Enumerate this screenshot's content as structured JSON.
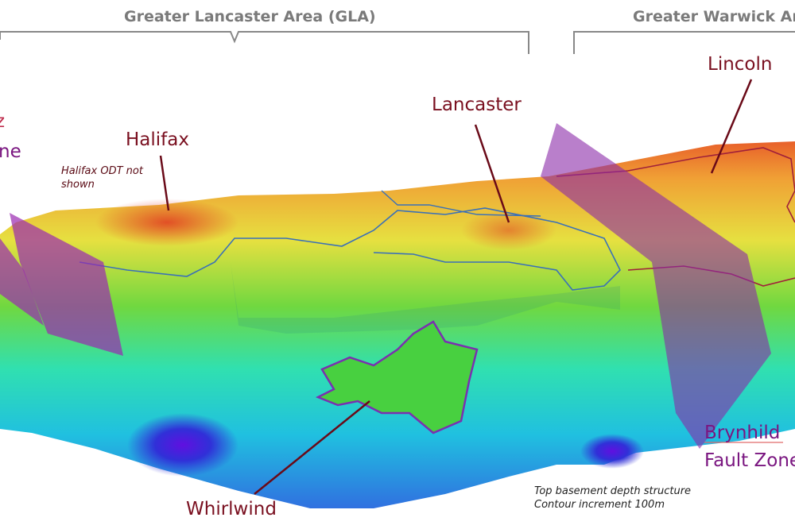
{
  "headers": {
    "gla": "Greater Lancaster Area (GLA)",
    "gwa": "Greater Warwick Area"
  },
  "labels": {
    "halifax": "Halifax",
    "halifax_note_line1": "Halifax ODT not",
    "halifax_note_line2": "shown",
    "lancaster": "Lancaster",
    "lincoln": "Lincoln",
    "whirlwind": "Whirlwind",
    "brynhild_line1": "Brynhild",
    "brynhild_line2": "Fault Zone",
    "left_cut_line1": "z",
    "left_cut_line2": "ne"
  },
  "caption": {
    "line1": "Top basement depth structure",
    "line2": "Contour increment 100m"
  },
  "colors": {
    "label_red": "#7a1020",
    "fault_purple": "#9a2ab0",
    "header_gray": "#7a7a7a",
    "depth_shallow": "#e8502a",
    "depth_deep": "#3a20e0"
  }
}
